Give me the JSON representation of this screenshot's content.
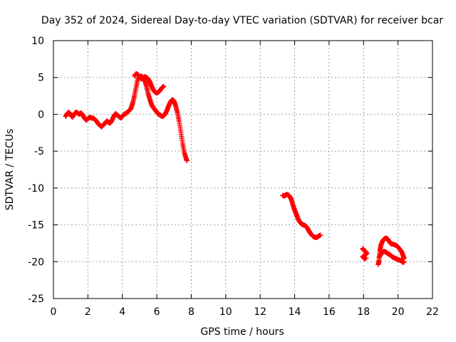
{
  "chart_data": {
    "type": "scatter",
    "title": "Day 352 of 2024, Sidereal Day-to-day VTEC variation (SDTVAR) for receiver bcar",
    "xlabel": "GPS time / hours",
    "ylabel": "SDTVAR / TECUs",
    "xlim": [
      0,
      22
    ],
    "ylim": [
      -25,
      10
    ],
    "xticks": [
      0,
      2,
      4,
      6,
      8,
      10,
      12,
      14,
      16,
      18,
      20,
      22
    ],
    "yticks": [
      -25,
      -20,
      -15,
      -10,
      -5,
      0,
      5,
      10
    ],
    "xtick_labels": [
      "0",
      "2",
      "4",
      "6",
      "8",
      "10",
      "12",
      "14",
      "16",
      "18",
      "20",
      "22"
    ],
    "ytick_labels": [
      "-25",
      "-20",
      "-15",
      "-10",
      "-5",
      "0",
      "5",
      "10"
    ],
    "grid": true,
    "marker": "plus",
    "colors": {
      "series": "#ff0000",
      "grid": "#a0a0a0",
      "axis": "#000000"
    },
    "series": [
      {
        "name": "segment-1",
        "points": [
          [
            0.7,
            -0.3
          ],
          [
            0.8,
            0.1
          ],
          [
            0.9,
            0.3
          ],
          [
            1.0,
            -0.1
          ],
          [
            1.1,
            -0.4
          ],
          [
            1.2,
            0.0
          ],
          [
            1.3,
            0.3
          ],
          [
            1.4,
            0.2
          ],
          [
            1.5,
            0.0
          ],
          [
            1.6,
            0.2
          ],
          [
            1.7,
            -0.1
          ],
          [
            1.8,
            -0.5
          ],
          [
            1.9,
            -0.8
          ],
          [
            2.0,
            -0.6
          ],
          [
            2.1,
            -0.4
          ],
          [
            2.2,
            -0.5
          ],
          [
            2.3,
            -0.5
          ],
          [
            2.4,
            -0.7
          ],
          [
            2.5,
            -0.9
          ],
          [
            2.6,
            -1.3
          ],
          [
            2.7,
            -1.5
          ],
          [
            2.8,
            -1.7
          ],
          [
            2.9,
            -1.4
          ],
          [
            3.0,
            -1.2
          ],
          [
            3.1,
            -0.9
          ],
          [
            3.2,
            -1.1
          ],
          [
            3.3,
            -1.2
          ],
          [
            3.4,
            -0.8
          ],
          [
            3.5,
            -0.3
          ],
          [
            3.6,
            0.1
          ],
          [
            3.7,
            -0.1
          ],
          [
            3.8,
            -0.3
          ],
          [
            3.9,
            -0.5
          ],
          [
            4.0,
            -0.3
          ],
          [
            4.1,
            0.0
          ],
          [
            4.2,
            0.1
          ],
          [
            4.3,
            0.3
          ],
          [
            4.4,
            0.5
          ],
          [
            4.5,
            0.8
          ],
          [
            4.6,
            1.5
          ],
          [
            4.7,
            2.5
          ],
          [
            4.8,
            3.7
          ],
          [
            4.9,
            4.8
          ],
          [
            5.0,
            5.0
          ],
          [
            5.1,
            5.2
          ],
          [
            5.2,
            5.0
          ],
          [
            5.3,
            4.6
          ],
          [
            5.4,
            3.8
          ],
          [
            5.5,
            2.8
          ],
          [
            5.6,
            2.0
          ],
          [
            5.7,
            1.3
          ],
          [
            5.8,
            0.9
          ],
          [
            5.9,
            0.6
          ],
          [
            6.0,
            0.3
          ],
          [
            6.1,
            0.0
          ],
          [
            6.2,
            -0.1
          ],
          [
            6.3,
            -0.3
          ],
          [
            6.4,
            -0.2
          ],
          [
            6.5,
            0.1
          ],
          [
            6.6,
            0.6
          ],
          [
            6.7,
            1.2
          ],
          [
            6.8,
            1.7
          ],
          [
            6.9,
            2.0
          ],
          [
            7.0,
            1.8
          ],
          [
            7.1,
            1.1
          ],
          [
            7.2,
            0.2
          ],
          [
            7.3,
            -1.0
          ],
          [
            7.4,
            -2.5
          ],
          [
            7.5,
            -4.0
          ],
          [
            7.6,
            -5.2
          ],
          [
            7.7,
            -6.0
          ],
          [
            7.75,
            -6.3
          ]
        ]
      },
      {
        "name": "segment-2",
        "points": [
          [
            4.7,
            5.2
          ],
          [
            4.8,
            5.5
          ],
          [
            4.9,
            5.4
          ],
          [
            5.0,
            5.1
          ],
          [
            5.1,
            4.8
          ],
          [
            5.2,
            4.9
          ],
          [
            5.3,
            5.1
          ],
          [
            5.4,
            5.0
          ],
          [
            5.5,
            4.8
          ],
          [
            5.6,
            4.4
          ],
          [
            5.7,
            3.8
          ],
          [
            5.8,
            3.3
          ],
          [
            5.9,
            3.0
          ],
          [
            6.0,
            2.9
          ],
          [
            6.1,
            3.0
          ],
          [
            6.2,
            3.3
          ],
          [
            6.3,
            3.6
          ],
          [
            6.4,
            3.8
          ]
        ]
      },
      {
        "name": "segment-3",
        "points": [
          [
            13.3,
            -11.0
          ],
          [
            13.4,
            -11.1
          ],
          [
            13.5,
            -10.9
          ],
          [
            13.6,
            -10.9
          ],
          [
            13.7,
            -11.1
          ],
          [
            13.8,
            -11.5
          ],
          [
            13.9,
            -12.3
          ],
          [
            14.0,
            -13.0
          ],
          [
            14.1,
            -13.6
          ],
          [
            14.2,
            -14.2
          ],
          [
            14.3,
            -14.6
          ],
          [
            14.4,
            -14.9
          ],
          [
            14.5,
            -15.0
          ],
          [
            14.6,
            -15.1
          ],
          [
            14.7,
            -15.3
          ],
          [
            14.8,
            -15.7
          ],
          [
            14.9,
            -16.1
          ],
          [
            15.0,
            -16.4
          ],
          [
            15.1,
            -16.6
          ],
          [
            15.2,
            -16.7
          ],
          [
            15.3,
            -16.7
          ],
          [
            15.4,
            -16.5
          ],
          [
            15.5,
            -16.4
          ]
        ]
      },
      {
        "name": "segment-4",
        "points": [
          [
            17.95,
            -18.2
          ],
          [
            18.0,
            -18.4
          ],
          [
            18.1,
            -18.6
          ],
          [
            18.2,
            -18.9
          ],
          [
            17.95,
            -19.3
          ],
          [
            18.05,
            -19.6
          ],
          [
            18.15,
            -19.5
          ]
        ]
      },
      {
        "name": "segment-5",
        "points": [
          [
            18.85,
            -20.4
          ],
          [
            18.9,
            -19.8
          ],
          [
            18.95,
            -18.6
          ],
          [
            19.0,
            -17.8
          ],
          [
            19.1,
            -17.2
          ],
          [
            19.2,
            -16.9
          ],
          [
            19.3,
            -16.8
          ],
          [
            19.4,
            -16.9
          ],
          [
            19.5,
            -17.3
          ],
          [
            19.6,
            -17.6
          ],
          [
            19.7,
            -17.6
          ],
          [
            19.8,
            -17.7
          ],
          [
            19.9,
            -17.8
          ],
          [
            20.0,
            -18.0
          ],
          [
            20.1,
            -18.3
          ],
          [
            20.2,
            -18.6
          ],
          [
            20.3,
            -19.2
          ],
          [
            20.35,
            -19.6
          ]
        ]
      },
      {
        "name": "segment-6",
        "points": [
          [
            18.9,
            -19.4
          ],
          [
            19.0,
            -19.0
          ],
          [
            19.1,
            -18.7
          ],
          [
            19.2,
            -18.6
          ],
          [
            19.3,
            -18.7
          ],
          [
            19.4,
            -18.9
          ],
          [
            19.5,
            -19.0
          ],
          [
            19.6,
            -19.2
          ],
          [
            19.7,
            -19.4
          ],
          [
            19.8,
            -19.5
          ],
          [
            19.9,
            -19.6
          ],
          [
            20.0,
            -19.7
          ],
          [
            20.1,
            -19.8
          ],
          [
            20.2,
            -19.9
          ],
          [
            20.3,
            -20.1
          ],
          [
            20.35,
            -20.0
          ]
        ]
      }
    ]
  }
}
